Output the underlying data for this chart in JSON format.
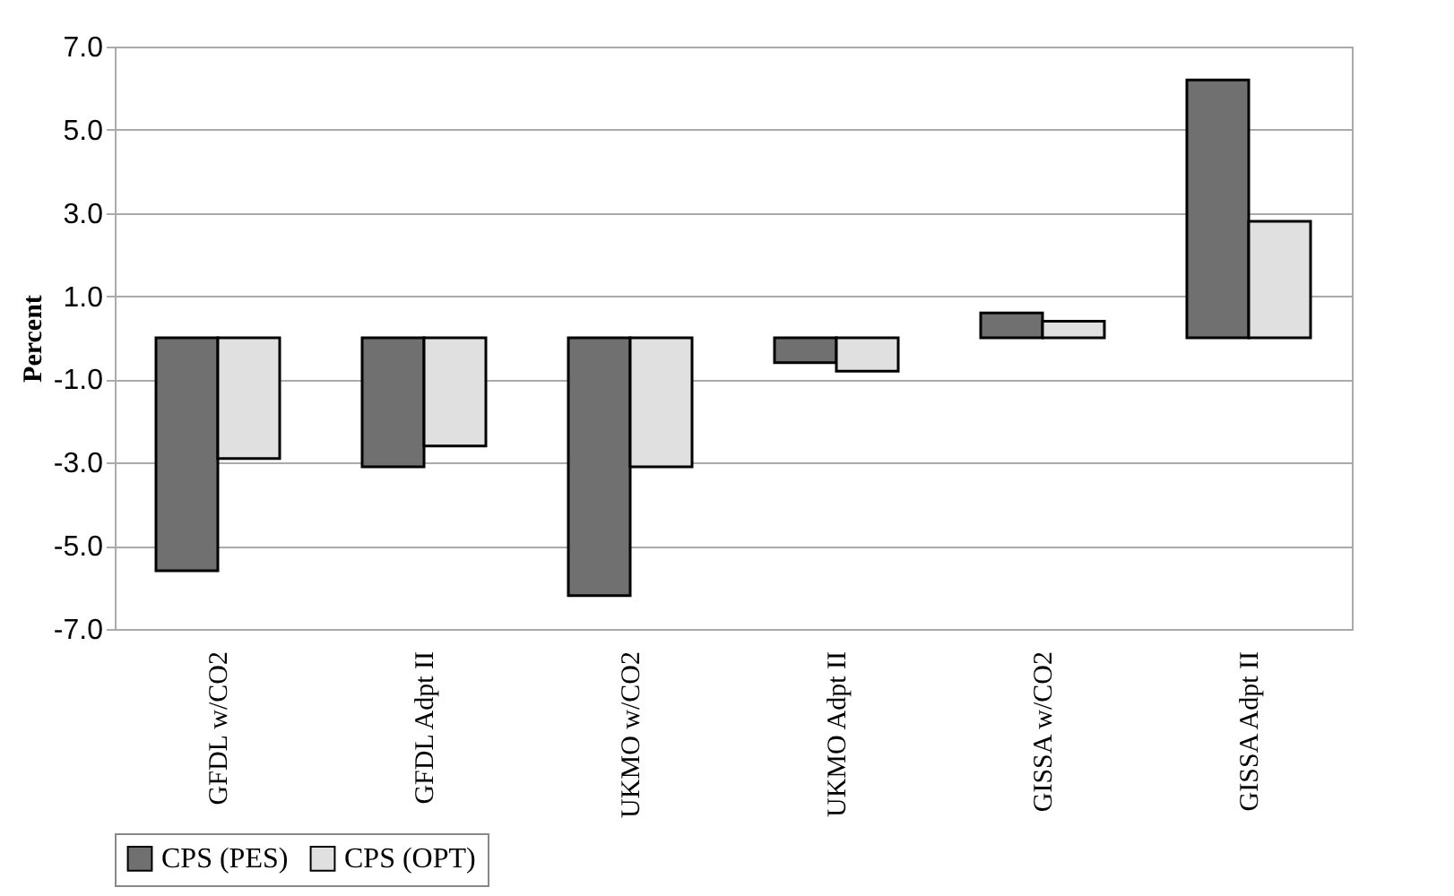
{
  "chart_data": {
    "type": "bar",
    "ylabel": "Percent",
    "categories": [
      "GFDL w/CO2",
      "GFDL Adpt II",
      "UKMO w/CO2",
      "UKMO Adpt II",
      "GISSA w/CO2",
      "GISSA Adpt II"
    ],
    "series": [
      {
        "name": "CPS (PES)",
        "color": "#707070",
        "values": [
          -5.6,
          -3.1,
          -6.2,
          -0.6,
          0.6,
          6.2
        ]
      },
      {
        "name": "CPS (OPT)",
        "color": "#e0e0e0",
        "values": [
          -2.9,
          -2.6,
          -3.1,
          -0.8,
          0.4,
          2.8
        ]
      }
    ],
    "ylim": [
      -7,
      7
    ],
    "yticks": [
      {
        "value": -7,
        "label": "-7.0"
      },
      {
        "value": -5,
        "label": "-5.0"
      },
      {
        "value": -3,
        "label": "-3.0"
      },
      {
        "value": -1,
        "label": "-1.0"
      },
      {
        "value": 1,
        "label": "1.0"
      },
      {
        "value": 3,
        "label": "3.0"
      },
      {
        "value": 5,
        "label": "5.0"
      },
      {
        "value": 7,
        "label": "7.0"
      }
    ],
    "grid": "y",
    "legend": "bottom"
  }
}
